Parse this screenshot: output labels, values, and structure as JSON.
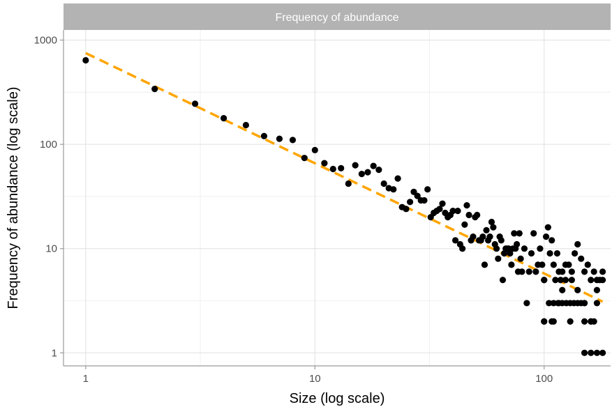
{
  "chart_data": {
    "type": "scatter",
    "title": "Frequency of abundance",
    "xlabel": "Size (log scale)",
    "ylabel": "Frequency of abundance (log scale)",
    "xscale": "log",
    "yscale": "log",
    "xlim": [
      0.8,
      195
    ],
    "ylim": [
      0.75,
      1250
    ],
    "xticks": [
      1,
      10,
      100
    ],
    "xtick_labels": [
      "1",
      "10",
      "100"
    ],
    "yticks": [
      1,
      10,
      100,
      1000
    ],
    "ytick_labels": [
      "1",
      "10",
      "100",
      "1000"
    ],
    "grid": true,
    "legend": "none",
    "colors": {
      "points": "#000000",
      "fit_line": "#FFA500",
      "strip": "#b3b3b3"
    },
    "series": [
      {
        "type": "scatter",
        "x": [
          1,
          2,
          3,
          4,
          5,
          6,
          7,
          8,
          9,
          10,
          11,
          12,
          13,
          14,
          15,
          16,
          17,
          18,
          19,
          20,
          21,
          22,
          23,
          24,
          25,
          26,
          27,
          28,
          29,
          30,
          31,
          32,
          33,
          34,
          35,
          36,
          37,
          38,
          39,
          40,
          41,
          42,
          43,
          44,
          45,
          46,
          47,
          48,
          49,
          50,
          51,
          52,
          53,
          54,
          55,
          56,
          57,
          58,
          59,
          60,
          61,
          62,
          63,
          64,
          65,
          66,
          67,
          68,
          69,
          70,
          71,
          72,
          73,
          74,
          75,
          76,
          77,
          78,
          79,
          80,
          82,
          84,
          86,
          88,
          90,
          92,
          94,
          96,
          98,
          100,
          102,
          104,
          106,
          108,
          110,
          112,
          114,
          116,
          118,
          120,
          124,
          128,
          132,
          136,
          140,
          145,
          150,
          155,
          160,
          165,
          170,
          175,
          180,
          100,
          105,
          110,
          115,
          120,
          125,
          130,
          135,
          140,
          145,
          150,
          160,
          170,
          100,
          108,
          116,
          124,
          132,
          140,
          150,
          160,
          170,
          180,
          100,
          110,
          120,
          130,
          150,
          165,
          180,
          150,
          160,
          170
        ],
        "y": [
          640,
          340,
          245,
          178,
          153,
          120,
          113,
          110,
          74,
          88,
          66,
          58,
          59,
          42,
          63,
          52,
          54,
          62,
          57,
          42,
          38,
          37,
          47,
          25,
          24,
          28,
          35,
          32,
          29,
          29,
          37,
          20,
          22,
          23,
          24,
          27,
          22,
          20,
          21,
          23,
          12,
          23,
          11,
          10,
          17,
          26,
          21,
          12,
          13,
          20,
          21,
          12,
          12,
          13,
          7,
          15,
          12,
          13,
          18,
          16,
          11,
          10,
          8,
          13,
          12,
          5,
          9,
          10,
          10,
          10,
          9,
          7,
          10,
          14,
          10,
          11,
          6,
          14,
          8,
          6,
          10,
          3,
          6,
          9,
          14,
          6,
          7,
          10,
          7,
          5,
          13,
          16,
          9,
          12,
          7,
          5,
          9,
          6,
          5,
          6,
          7,
          7,
          6,
          9,
          11,
          8,
          6,
          7,
          5,
          6,
          4,
          5,
          6,
          5,
          3,
          3,
          3,
          3,
          3,
          2,
          3,
          3,
          3,
          3,
          2,
          5,
          2,
          2,
          3,
          5,
          5,
          4,
          3,
          2,
          3,
          5,
          2,
          2,
          4,
          3,
          2,
          2,
          1,
          1,
          1,
          1
        ],
        "color": "#000000"
      },
      {
        "type": "line",
        "style": "dashed",
        "x": [
          1,
          180
        ],
        "y": [
          750,
          3.1
        ],
        "color": "#FFA500"
      }
    ]
  }
}
